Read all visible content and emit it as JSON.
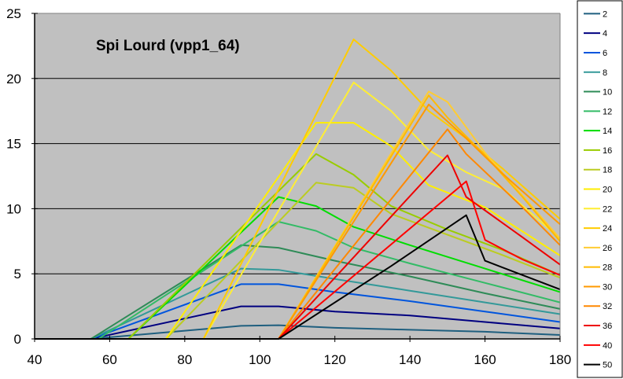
{
  "chart_data": {
    "type": "line",
    "title": "Spi Lourd (vpp1_64)",
    "xlabel": "",
    "ylabel": "",
    "xlim": [
      40,
      180
    ],
    "ylim": [
      0,
      25
    ],
    "x_ticks": [
      40,
      60,
      80,
      100,
      120,
      140,
      160,
      180
    ],
    "y_ticks": [
      0,
      5,
      10,
      15,
      20,
      25
    ],
    "grid": "horizontal",
    "plot_background": "#C0C0C0",
    "legend_position": "right",
    "series": [
      {
        "name": "2",
        "color": "#1F5F7F",
        "points": [
          [
            40,
            0
          ],
          [
            55,
            0
          ],
          [
            95,
            1.0
          ],
          [
            105,
            1.05
          ],
          [
            120,
            0.85
          ],
          [
            140,
            0.7
          ],
          [
            160,
            0.55
          ],
          [
            180,
            0.3
          ]
        ]
      },
      {
        "name": "4",
        "color": "#000080",
        "points": [
          [
            40,
            0
          ],
          [
            55,
            0
          ],
          [
            95,
            2.5
          ],
          [
            105,
            2.5
          ],
          [
            120,
            2.1
          ],
          [
            140,
            1.8
          ],
          [
            160,
            1.3
          ],
          [
            180,
            0.8
          ]
        ]
      },
      {
        "name": "6",
        "color": "#0055DD",
        "points": [
          [
            40,
            0
          ],
          [
            55,
            0
          ],
          [
            95,
            4.2
          ],
          [
            105,
            4.2
          ],
          [
            120,
            3.6
          ],
          [
            140,
            2.9
          ],
          [
            160,
            2.1
          ],
          [
            180,
            1.3
          ]
        ]
      },
      {
        "name": "8",
        "color": "#339999",
        "points": [
          [
            40,
            0
          ],
          [
            55,
            0
          ],
          [
            95,
            5.4
          ],
          [
            105,
            5.3
          ],
          [
            120,
            4.6
          ],
          [
            140,
            3.7
          ],
          [
            160,
            2.8
          ],
          [
            180,
            1.9
          ]
        ]
      },
      {
        "name": "10",
        "color": "#2E8B57",
        "points": [
          [
            40,
            0
          ],
          [
            55,
            0
          ],
          [
            95,
            7.2
          ],
          [
            105,
            7.0
          ],
          [
            120,
            6.0
          ],
          [
            140,
            4.8
          ],
          [
            160,
            3.5
          ],
          [
            180,
            2.3
          ]
        ]
      },
      {
        "name": "12",
        "color": "#33BB66",
        "points": [
          [
            40,
            0
          ],
          [
            57,
            0
          ],
          [
            105,
            9.0
          ],
          [
            115,
            8.3
          ],
          [
            125,
            7.0
          ],
          [
            140,
            5.8
          ],
          [
            160,
            4.3
          ],
          [
            180,
            2.8
          ]
        ]
      },
      {
        "name": "14",
        "color": "#00DD00",
        "points": [
          [
            40,
            0
          ],
          [
            65,
            0
          ],
          [
            105,
            10.9
          ],
          [
            115,
            10.2
          ],
          [
            125,
            8.6
          ],
          [
            140,
            7.2
          ],
          [
            160,
            5.4
          ],
          [
            180,
            3.6
          ]
        ]
      },
      {
        "name": "16",
        "color": "#99CC00",
        "points": [
          [
            40,
            0
          ],
          [
            65,
            0
          ],
          [
            115,
            14.2
          ],
          [
            125,
            12.6
          ],
          [
            135,
            10.2
          ],
          [
            150,
            8.4
          ],
          [
            165,
            6.8
          ],
          [
            180,
            4.9
          ]
        ]
      },
      {
        "name": "18",
        "color": "#BBCC22",
        "points": [
          [
            40,
            0
          ],
          [
            75,
            0
          ],
          [
            115,
            12.0
          ],
          [
            125,
            11.6
          ],
          [
            135,
            9.6
          ],
          [
            150,
            8.0
          ],
          [
            165,
            6.4
          ],
          [
            180,
            4.7
          ]
        ]
      },
      {
        "name": "20",
        "color": "#FFEE00",
        "points": [
          [
            40,
            0
          ],
          [
            75,
            0
          ],
          [
            115,
            16.6
          ],
          [
            125,
            16.6
          ],
          [
            135,
            14.8
          ],
          [
            145,
            11.8
          ],
          [
            160,
            10.1
          ],
          [
            180,
            6.4
          ]
        ]
      },
      {
        "name": "22",
        "color": "#FFEE33",
        "points": [
          [
            40,
            0
          ],
          [
            85,
            0
          ],
          [
            125,
            19.7
          ],
          [
            135,
            17.5
          ],
          [
            145,
            14.5
          ],
          [
            155,
            12.8
          ],
          [
            165,
            11.5
          ],
          [
            180,
            7.7
          ]
        ]
      },
      {
        "name": "24",
        "color": "#FFCC00",
        "points": [
          [
            40,
            0
          ],
          [
            85,
            0
          ],
          [
            125,
            23.0
          ],
          [
            135,
            20.6
          ],
          [
            145,
            17.5
          ],
          [
            155,
            15.4
          ],
          [
            165,
            13.0
          ],
          [
            180,
            9.2
          ]
        ]
      },
      {
        "name": "26",
        "color": "#FFCC33",
        "points": [
          [
            40,
            0
          ],
          [
            105,
            0
          ],
          [
            145,
            19.0
          ],
          [
            150,
            18.2
          ],
          [
            160,
            14.3
          ],
          [
            170,
            11.0
          ],
          [
            180,
            7.7
          ]
        ]
      },
      {
        "name": "28",
        "color": "#FFBB00",
        "points": [
          [
            40,
            0
          ],
          [
            105,
            0
          ],
          [
            145,
            18.7
          ],
          [
            150,
            17.0
          ],
          [
            160,
            14.1
          ],
          [
            170,
            10.9
          ],
          [
            180,
            7.5
          ]
        ]
      },
      {
        "name": "30",
        "color": "#FF9900",
        "points": [
          [
            40,
            0
          ],
          [
            105,
            0
          ],
          [
            145,
            18.0
          ],
          [
            155,
            15.4
          ],
          [
            165,
            12.6
          ],
          [
            180,
            8.8
          ]
        ]
      },
      {
        "name": "32",
        "color": "#FF8800",
        "points": [
          [
            40,
            0
          ],
          [
            105,
            0
          ],
          [
            150,
            16.1
          ],
          [
            155,
            14.2
          ],
          [
            170,
            10.1
          ],
          [
            180,
            7.2
          ]
        ]
      },
      {
        "name": "36",
        "color": "#EE0000",
        "points": [
          [
            40,
            0
          ],
          [
            105,
            0
          ],
          [
            150,
            14.1
          ],
          [
            155,
            10.9
          ],
          [
            170,
            7.8
          ],
          [
            180,
            5.7
          ]
        ]
      },
      {
        "name": "40",
        "color": "#FF0000",
        "points": [
          [
            40,
            0
          ],
          [
            105,
            0
          ],
          [
            155,
            12.1
          ],
          [
            160,
            7.6
          ],
          [
            170,
            6.1
          ],
          [
            180,
            4.9
          ]
        ]
      },
      {
        "name": "50",
        "color": "#000000",
        "points": [
          [
            40,
            0
          ],
          [
            105,
            0
          ],
          [
            135,
            5.6
          ],
          [
            155,
            9.5
          ],
          [
            160,
            6.0
          ],
          [
            180,
            3.8
          ]
        ]
      }
    ]
  }
}
